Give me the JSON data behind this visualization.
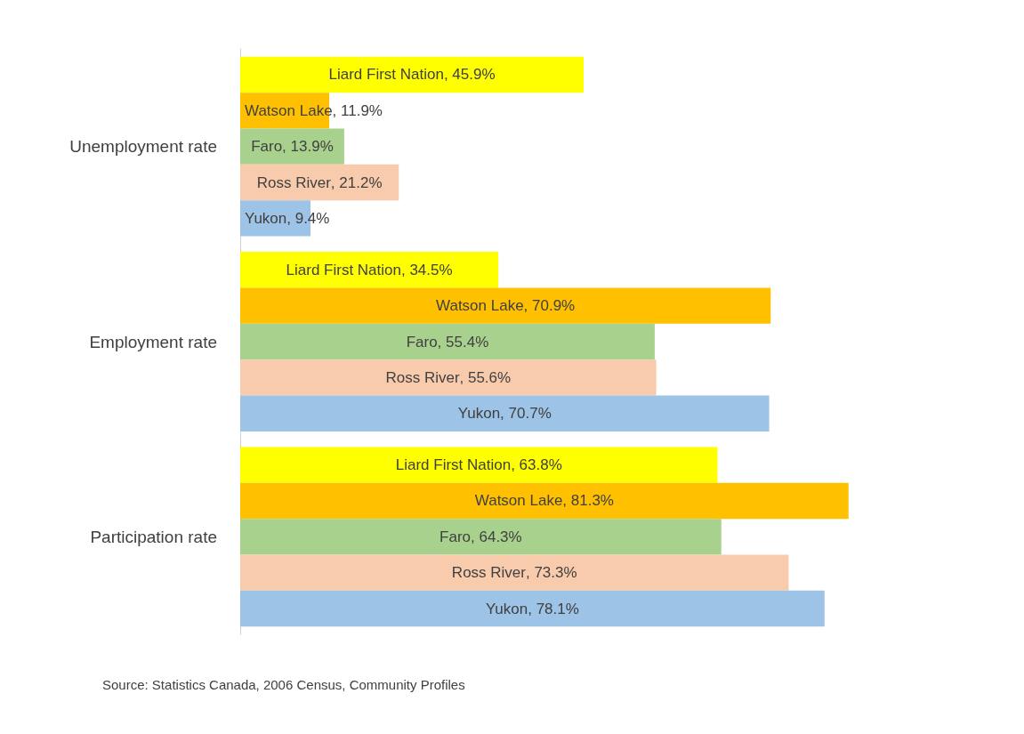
{
  "chart_data": {
    "type": "bar",
    "orientation": "horizontal",
    "categories": [
      "Unemployment rate",
      "Employment rate",
      "Participation rate"
    ],
    "series": [
      {
        "name": "Liard First Nation",
        "color": "#ffff00",
        "values": [
          45.9,
          34.5,
          63.8
        ],
        "value_labels": [
          ", 45.9%",
          ", 34.5%",
          ", 63.8%"
        ]
      },
      {
        "name": "Watson Lake",
        "color": "#ffc000",
        "values": [
          11.9,
          70.9,
          81.3
        ],
        "value_labels": [
          ", 11.9%",
          ", 70.9%",
          ", 81.3%"
        ]
      },
      {
        "name": "Faro",
        "color": "#a9d18e",
        "values": [
          13.9,
          55.4,
          64.3
        ],
        "value_labels": [
          ", 13.9%",
          ", 55.4%",
          ", 64.3%"
        ]
      },
      {
        "name": "Ross River",
        "color": "#f8cbad",
        "values": [
          21.2,
          55.6,
          73.3
        ],
        "value_labels": [
          ", 21.2%",
          ", 55.6%",
          ", 73.3%"
        ]
      },
      {
        "name": "Yukon",
        "color": "#9dc3e6",
        "values": [
          9.4,
          70.7,
          78.1
        ],
        "value_labels": [
          ", 9.4%",
          ", 70.7%",
          ", 78.1%"
        ]
      }
    ],
    "annotations": [
      "Source: Statistics Canada, 2006 Census, Community Profiles"
    ],
    "tick_labels": "y",
    "grid": false,
    "legend": false
  }
}
